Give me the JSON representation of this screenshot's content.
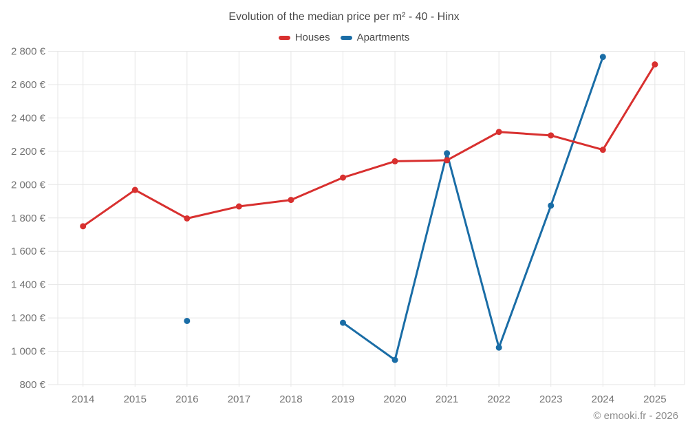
{
  "chart_data": {
    "type": "line",
    "title": "Evolution of the median price per m² - 40 - Hinx",
    "x": [
      2014,
      2015,
      2016,
      2017,
      2018,
      2019,
      2020,
      2021,
      2022,
      2023,
      2024,
      2025
    ],
    "series": [
      {
        "name": "Houses",
        "color": "#d8302f",
        "values": [
          1750,
          1968,
          1797,
          1869,
          1908,
          2042,
          2140,
          2146,
          2316,
          2295,
          2209,
          2721
        ]
      },
      {
        "name": "Apartments",
        "color": "#1a6da6",
        "values": [
          null,
          null,
          1182,
          null,
          null,
          1171,
          948,
          2188,
          1022,
          1874,
          2766,
          null
        ]
      }
    ],
    "ylim": [
      800,
      2800
    ],
    "ytick_step": 200,
    "ytick_suffix": " €",
    "grid": true,
    "legend_position": "top"
  },
  "footer_credit": "© emooki.fr - 2026",
  "ui_colors": {
    "axis_text": "#737373",
    "title_text": "#4a4a4a",
    "grid": "#e6e6e6",
    "background": "#ffffff",
    "footer_text": "#8c8c8c"
  }
}
